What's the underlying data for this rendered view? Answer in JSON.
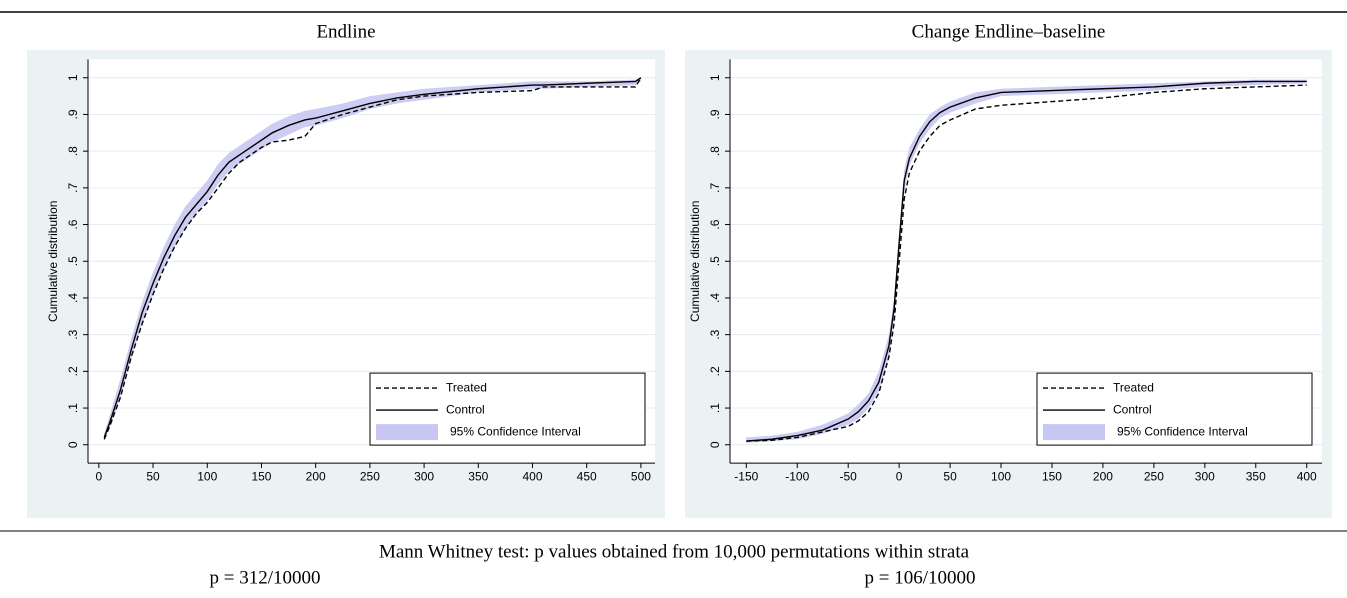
{
  "chart_data": [
    {
      "type": "line",
      "title": "Endline",
      "ylabel": "Cumulative distribution",
      "xlim": [
        -10,
        513
      ],
      "ylim": [
        -0.05,
        1.05
      ],
      "xticks": [
        0,
        50,
        100,
        150,
        200,
        250,
        300,
        350,
        400,
        450,
        500
      ],
      "yticks": [
        0,
        {
          "value": 0.1,
          "label": ".1"
        },
        {
          "value": 0.2,
          "label": ".2"
        },
        {
          "value": 0.3,
          "label": ".3"
        },
        {
          "value": 0.4,
          "label": ".4"
        },
        {
          "value": 0.5,
          "label": ".5"
        },
        {
          "value": 0.6,
          "label": ".6"
        },
        {
          "value": 0.7,
          "label": ".7"
        },
        {
          "value": 0.8,
          "label": ".8"
        },
        {
          "value": 0.9,
          "label": ".9"
        },
        1
      ],
      "grid": true,
      "legend": "lower right",
      "x": [
        5,
        10,
        20,
        30,
        40,
        50,
        60,
        70,
        80,
        90,
        100,
        110,
        120,
        130,
        140,
        150,
        160,
        175,
        190,
        200,
        225,
        250,
        275,
        300,
        350,
        400,
        410,
        450,
        495,
        500
      ],
      "series": [
        {
          "name": "Treated",
          "color": "#000000",
          "dash": true,
          "values": [
            0.015,
            0.05,
            0.13,
            0.24,
            0.33,
            0.41,
            0.48,
            0.54,
            0.59,
            0.63,
            0.66,
            0.7,
            0.74,
            0.77,
            0.79,
            0.81,
            0.825,
            0.83,
            0.84,
            0.875,
            0.9,
            0.92,
            0.94,
            0.95,
            0.96,
            0.965,
            0.975,
            0.975,
            0.975,
            1
          ]
        },
        {
          "name": "Control",
          "color": "#000000",
          "dash": false,
          "values": [
            0.02,
            0.06,
            0.15,
            0.26,
            0.36,
            0.44,
            0.51,
            0.57,
            0.62,
            0.655,
            0.69,
            0.735,
            0.77,
            0.79,
            0.81,
            0.83,
            0.85,
            0.87,
            0.885,
            0.89,
            0.91,
            0.93,
            0.945,
            0.955,
            0.97,
            0.98,
            0.98,
            0.985,
            0.99,
            1
          ]
        },
        {
          "name": "95% Confidence Interval",
          "color": "#c8c6f2",
          "lower": [
            0.01,
            0.045,
            0.13,
            0.235,
            0.33,
            0.41,
            0.48,
            0.54,
            0.59,
            0.63,
            0.665,
            0.71,
            0.745,
            0.765,
            0.785,
            0.805,
            0.825,
            0.845,
            0.865,
            0.87,
            0.89,
            0.915,
            0.93,
            0.94,
            0.96,
            0.97,
            0.97,
            0.975,
            0.98,
            0.99
          ],
          "upper": [
            0.03,
            0.08,
            0.18,
            0.29,
            0.39,
            0.47,
            0.54,
            0.6,
            0.65,
            0.685,
            0.72,
            0.765,
            0.795,
            0.815,
            0.835,
            0.855,
            0.875,
            0.895,
            0.91,
            0.915,
            0.93,
            0.95,
            0.96,
            0.97,
            0.98,
            0.99,
            0.99,
            0.99,
            0.995,
            1
          ]
        }
      ]
    },
    {
      "type": "line",
      "title": "Change Endline–baseline",
      "ylabel": "Cumulative distribution",
      "xlim": [
        -166,
        415
      ],
      "ylim": [
        -0.05,
        1.05
      ],
      "xticks": [
        -150,
        -100,
        -50,
        0,
        50,
        100,
        150,
        200,
        250,
        300,
        350,
        400
      ],
      "yticks": [
        0,
        {
          "value": 0.1,
          "label": ".1"
        },
        {
          "value": 0.2,
          "label": ".2"
        },
        {
          "value": 0.3,
          "label": ".3"
        },
        {
          "value": 0.4,
          "label": ".4"
        },
        {
          "value": 0.5,
          "label": ".5"
        },
        {
          "value": 0.6,
          "label": ".6"
        },
        {
          "value": 0.7,
          "label": ".7"
        },
        {
          "value": 0.8,
          "label": ".8"
        },
        {
          "value": 0.9,
          "label": ".9"
        },
        1
      ],
      "grid": true,
      "legend": "lower right",
      "x": [
        -150,
        -125,
        -100,
        -75,
        -50,
        -40,
        -30,
        -20,
        -10,
        -5,
        0,
        5,
        10,
        20,
        30,
        40,
        50,
        75,
        100,
        150,
        200,
        250,
        300,
        350,
        400
      ],
      "series": [
        {
          "name": "Treated",
          "color": "#000000",
          "dash": true,
          "values": [
            0.01,
            0.012,
            0.02,
            0.035,
            0.05,
            0.065,
            0.09,
            0.14,
            0.24,
            0.33,
            0.5,
            0.67,
            0.74,
            0.8,
            0.84,
            0.87,
            0.885,
            0.915,
            0.925,
            0.935,
            0.945,
            0.96,
            0.97,
            0.975,
            0.98
          ]
        },
        {
          "name": "Control",
          "color": "#000000",
          "dash": false,
          "values": [
            0.01,
            0.015,
            0.025,
            0.04,
            0.07,
            0.09,
            0.12,
            0.17,
            0.27,
            0.37,
            0.55,
            0.72,
            0.78,
            0.84,
            0.88,
            0.905,
            0.92,
            0.945,
            0.96,
            0.965,
            0.97,
            0.975,
            0.985,
            0.99,
            0.99
          ]
        },
        {
          "name": "95% Confidence Interval",
          "color": "#c8c6f2",
          "lower": [
            0.005,
            0.01,
            0.015,
            0.03,
            0.055,
            0.07,
            0.1,
            0.145,
            0.24,
            0.34,
            0.52,
            0.69,
            0.76,
            0.82,
            0.86,
            0.89,
            0.905,
            0.93,
            0.95,
            0.955,
            0.96,
            0.965,
            0.975,
            0.98,
            0.985
          ],
          "upper": [
            0.02,
            0.025,
            0.035,
            0.055,
            0.085,
            0.11,
            0.14,
            0.2,
            0.3,
            0.4,
            0.58,
            0.75,
            0.81,
            0.86,
            0.9,
            0.92,
            0.935,
            0.96,
            0.97,
            0.975,
            0.98,
            0.985,
            0.99,
            0.995,
            0.995
          ]
        }
      ]
    }
  ],
  "footer": {
    "note": "Mann Whitney test: p values obtained from 10,000 permutations within strata",
    "p_values": [
      "p = 312/10000",
      "p = 106/10000"
    ]
  }
}
